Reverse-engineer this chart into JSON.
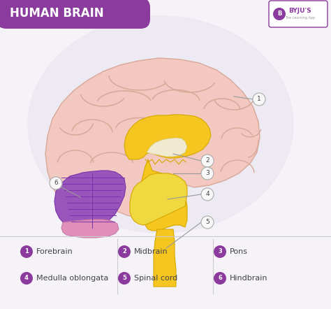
{
  "title": "HUMAN BRAIN",
  "title_bg_color": "#8b3a9e",
  "title_text_color": "#ffffff",
  "bg_color": "#f5f2f8",
  "legend_items": [
    {
      "num": "1",
      "label": "Forebrain"
    },
    {
      "num": "2",
      "label": "Midbrain"
    },
    {
      "num": "3",
      "label": "Pons"
    },
    {
      "num": "4",
      "label": "Medulla oblongata"
    },
    {
      "num": "5",
      "label": "Spinal cord"
    },
    {
      "num": "6",
      "label": "Hindbrain"
    }
  ],
  "legend_circle_color": "#8b3a9e",
  "legend_text_color": "#444444",
  "forebrain_color": "#f2c8c0",
  "forebrain_stroke": "#d8a898",
  "midbrain_color": "#f5c520",
  "midbrain_stroke": "#d4a800",
  "line_color": "#999999",
  "circle_fill": "#f8f8f8",
  "circle_stroke": "#aaaaaa",
  "byju_purple": "#8b3a9e",
  "cerebellum_purple": "#9955bb",
  "cerebellum_pink": "#e090b8"
}
